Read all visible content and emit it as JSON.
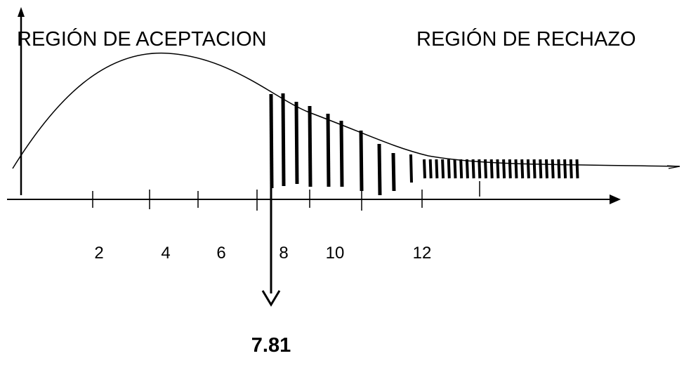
{
  "labels": {
    "acceptance_region": "REGIÓN DE ACEPTACION",
    "rejection_region": "REGIÓN DE RECHAZO",
    "critical_value": "7.81"
  },
  "x_tick_labels": [
    "2",
    "4",
    "6",
    "8",
    "10",
    "12"
  ],
  "critical_value": 7.81,
  "colors": {
    "ink": "#000000",
    "background": "#ffffff"
  }
}
